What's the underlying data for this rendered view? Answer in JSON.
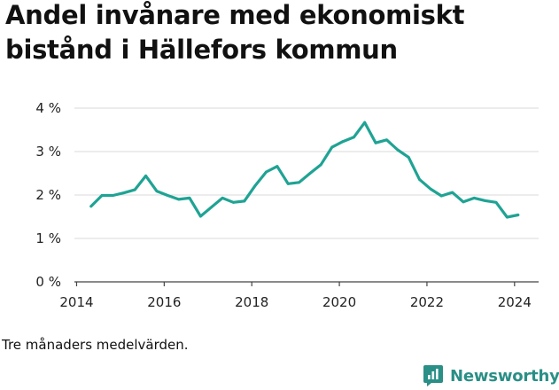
{
  "chart_data": {
    "type": "line",
    "title": "Andel invånare med ekonomiskt bistånd i Hällefors kommun",
    "xlabel": "",
    "ylabel": "",
    "x_ticks": [
      2014,
      2016,
      2018,
      2020,
      2022,
      2024
    ],
    "y_ticks": [
      0,
      1,
      2,
      3,
      4
    ],
    "y_tick_labels": [
      "0 %",
      "1 %",
      "2 %",
      "3 %",
      "4 %"
    ],
    "xlim": [
      2013.95,
      2024.55
    ],
    "ylim": [
      0,
      4
    ],
    "grid": "horizontal",
    "line_color": "#1fa394",
    "series": [
      {
        "values": [
          {
            "x": 2014.33,
            "y": 1.74
          },
          {
            "x": 2014.58,
            "y": 1.99
          },
          {
            "x": 2014.83,
            "y": 1.99
          },
          {
            "x": 2015.08,
            "y": 2.05
          },
          {
            "x": 2015.33,
            "y": 2.12
          },
          {
            "x": 2015.58,
            "y": 2.44
          },
          {
            "x": 2015.83,
            "y": 2.09
          },
          {
            "x": 2016.08,
            "y": 1.99
          },
          {
            "x": 2016.33,
            "y": 1.9
          },
          {
            "x": 2016.58,
            "y": 1.93
          },
          {
            "x": 2016.83,
            "y": 1.51
          },
          {
            "x": 2017.08,
            "y": 1.72
          },
          {
            "x": 2017.33,
            "y": 1.93
          },
          {
            "x": 2017.58,
            "y": 1.83
          },
          {
            "x": 2017.83,
            "y": 1.86
          },
          {
            "x": 2018.08,
            "y": 2.22
          },
          {
            "x": 2018.33,
            "y": 2.53
          },
          {
            "x": 2018.58,
            "y": 2.66
          },
          {
            "x": 2018.83,
            "y": 2.26
          },
          {
            "x": 2019.08,
            "y": 2.29
          },
          {
            "x": 2019.33,
            "y": 2.5
          },
          {
            "x": 2019.58,
            "y": 2.7
          },
          {
            "x": 2019.83,
            "y": 3.1
          },
          {
            "x": 2020.08,
            "y": 3.23
          },
          {
            "x": 2020.33,
            "y": 3.33
          },
          {
            "x": 2020.58,
            "y": 3.67
          },
          {
            "x": 2020.83,
            "y": 3.2
          },
          {
            "x": 2021.08,
            "y": 3.27
          },
          {
            "x": 2021.33,
            "y": 3.04
          },
          {
            "x": 2021.58,
            "y": 2.87
          },
          {
            "x": 2021.83,
            "y": 2.36
          },
          {
            "x": 2022.08,
            "y": 2.14
          },
          {
            "x": 2022.33,
            "y": 1.98
          },
          {
            "x": 2022.58,
            "y": 2.06
          },
          {
            "x": 2022.83,
            "y": 1.84
          },
          {
            "x": 2023.08,
            "y": 1.93
          },
          {
            "x": 2023.33,
            "y": 1.87
          },
          {
            "x": 2023.58,
            "y": 1.83
          },
          {
            "x": 2023.83,
            "y": 1.49
          },
          {
            "x": 2024.08,
            "y": 1.54
          }
        ]
      }
    ]
  },
  "footnote": "Tre månaders medelvärden.",
  "brand": {
    "name": "Newsworthy",
    "icon": "newsworthy-logo-icon",
    "color": "#2a8f86"
  },
  "colors": {
    "grid": "#d9d9d9",
    "axis": "#444444",
    "text": "#222222"
  }
}
